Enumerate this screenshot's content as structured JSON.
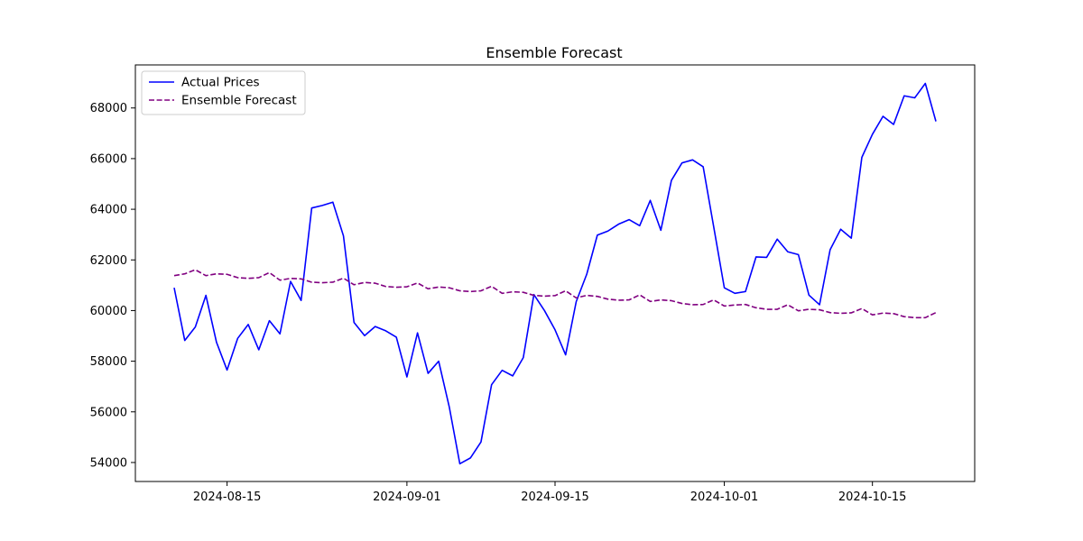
{
  "chart_data": {
    "type": "line",
    "title": "Ensemble Forecast",
    "xlabel": "",
    "ylabel": "",
    "x_dates": [
      "2024-08-10",
      "2024-08-11",
      "2024-08-12",
      "2024-08-13",
      "2024-08-14",
      "2024-08-15",
      "2024-08-16",
      "2024-08-17",
      "2024-08-18",
      "2024-08-19",
      "2024-08-20",
      "2024-08-21",
      "2024-08-22",
      "2024-08-23",
      "2024-08-24",
      "2024-08-25",
      "2024-08-26",
      "2024-08-27",
      "2024-08-28",
      "2024-08-29",
      "2024-08-30",
      "2024-08-31",
      "2024-09-01",
      "2024-09-02",
      "2024-09-03",
      "2024-09-04",
      "2024-09-05",
      "2024-09-06",
      "2024-09-07",
      "2024-09-08",
      "2024-09-09",
      "2024-09-10",
      "2024-09-11",
      "2024-09-12",
      "2024-09-13",
      "2024-09-14",
      "2024-09-15",
      "2024-09-16",
      "2024-09-17",
      "2024-09-18",
      "2024-09-19",
      "2024-09-20",
      "2024-09-21",
      "2024-09-22",
      "2024-09-23",
      "2024-09-24",
      "2024-09-25",
      "2024-09-26",
      "2024-09-27",
      "2024-09-28",
      "2024-09-29",
      "2024-09-30",
      "2024-10-01",
      "2024-10-02",
      "2024-10-03",
      "2024-10-04",
      "2024-10-05",
      "2024-10-06",
      "2024-10-07",
      "2024-10-08",
      "2024-10-09",
      "2024-10-10",
      "2024-10-11",
      "2024-10-12",
      "2024-10-13",
      "2024-10-14",
      "2024-10-15",
      "2024-10-16",
      "2024-10-17",
      "2024-10-18",
      "2024-10-19",
      "2024-10-20",
      "2024-10-21"
    ],
    "series": [
      {
        "name": "Actual Prices",
        "color": "#0000ff",
        "dash": "solid",
        "values": [
          60900,
          58820,
          59350,
          60600,
          58750,
          57650,
          58900,
          59450,
          58450,
          59600,
          59080,
          61150,
          60400,
          64050,
          64150,
          64280,
          62950,
          59530,
          59010,
          59370,
          59200,
          58950,
          57380,
          59120,
          57520,
          58000,
          56200,
          53950,
          54180,
          54810,
          57070,
          57640,
          57420,
          58140,
          60630,
          60000,
          59240,
          58250,
          60350,
          61440,
          62980,
          63140,
          63410,
          63590,
          63350,
          64350,
          63170,
          65140,
          65830,
          65950,
          65680,
          63300,
          60900,
          60680,
          60750,
          62120,
          62100,
          62820,
          62320,
          62210,
          60610,
          60230,
          62400,
          63210,
          62860,
          66050,
          66960,
          67670,
          67350,
          68480,
          68400,
          68970,
          67470
        ]
      },
      {
        "name": "Ensemble Forecast",
        "color": "#800080",
        "dash": "dashed",
        "values": [
          61380,
          61450,
          61610,
          61380,
          61450,
          61430,
          61300,
          61270,
          61300,
          61500,
          61200,
          61270,
          61250,
          61120,
          61100,
          61120,
          61280,
          61020,
          61110,
          61080,
          60950,
          60920,
          60940,
          61090,
          60860,
          60930,
          60900,
          60780,
          60750,
          60780,
          60960,
          60680,
          60740,
          60720,
          60600,
          60570,
          60590,
          60780,
          60500,
          60600,
          60560,
          60450,
          60410,
          60420,
          60620,
          60360,
          60420,
          60390,
          60280,
          60230,
          60240,
          60420,
          60180,
          60220,
          60240,
          60110,
          60050,
          60050,
          60230,
          59990,
          60050,
          60030,
          59920,
          59890,
          59910,
          60080,
          59830,
          59900,
          59880,
          59760,
          59720,
          59720,
          59920
        ]
      }
    ],
    "x_ticks": [
      "2024-08-15",
      "2024-09-01",
      "2024-09-15",
      "2024-10-01",
      "2024-10-15"
    ],
    "y_ticks": [
      54000,
      56000,
      58000,
      60000,
      62000,
      64000,
      66000,
      68000
    ],
    "ylim": [
      53250,
      69700
    ],
    "xlim": [
      "2024-08-06 08:00",
      "2024-10-24 16:00"
    ],
    "grid": false,
    "legend": "top-left"
  }
}
